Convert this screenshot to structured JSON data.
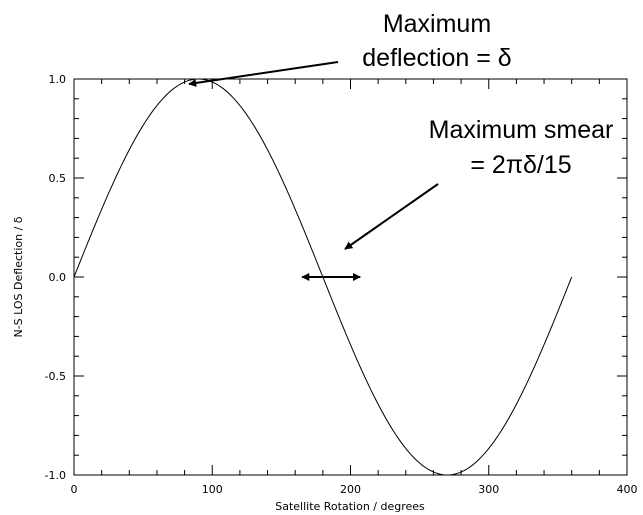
{
  "chart_data": {
    "type": "line",
    "title": "",
    "xlabel": "Satellite Rotation / degrees",
    "ylabel": "N-S LOS Deflection / δ",
    "xlim": [
      0,
      400
    ],
    "ylim": [
      -1.0,
      1.0
    ],
    "x_ticks": [
      "0",
      "100",
      "200",
      "300",
      "400"
    ],
    "y_ticks": [
      "1.0",
      "0.5",
      "0.0",
      "-0.5",
      "-1.0"
    ],
    "grid": false,
    "series": [
      {
        "function": "sin(x degrees)",
        "x_range": [
          0,
          360
        ],
        "sample_step": 30,
        "x": [
          0,
          30,
          60,
          90,
          120,
          150,
          180,
          210,
          240,
          270,
          300,
          330,
          360
        ],
        "y": [
          0,
          0.5,
          0.866,
          1.0,
          0.866,
          0.5,
          0,
          -0.5,
          -0.866,
          -1.0,
          -0.866,
          -0.5,
          0
        ]
      }
    ],
    "annotations": [
      {
        "lines": [
          "Maximum",
          "deflection = δ"
        ],
        "points_to": [
          90,
          1.0
        ]
      },
      {
        "lines": [
          "Maximum smear",
          "= 2πδ/15"
        ],
        "points_to": [
          186,
          0.13
        ],
        "double_arrow_x": [
          165,
          207
        ],
        "double_arrow_y": 0.0
      }
    ]
  }
}
